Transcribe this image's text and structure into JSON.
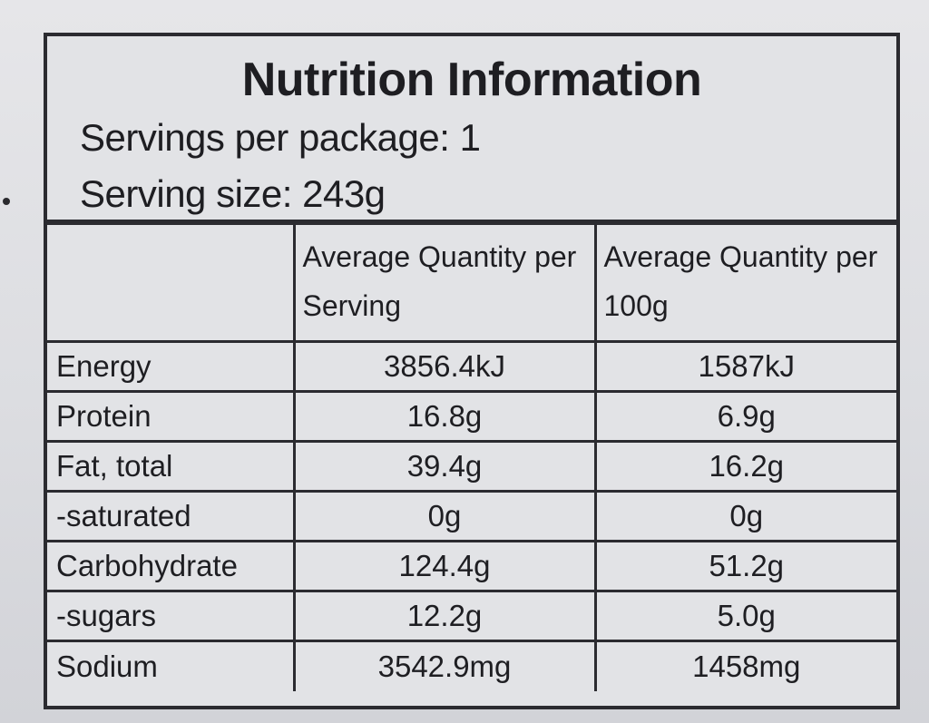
{
  "panel": {
    "title": "Nutrition Information",
    "servings_per_package": "Servings per package: 1",
    "serving_size": "Serving size: 243g"
  },
  "table": {
    "columns": [
      "",
      "Average Quantity per Serving",
      "Average Quantity per 100g"
    ],
    "rows": [
      {
        "nutrient": "Energy",
        "per_serving": "3856.4kJ",
        "per_100g": "1587kJ"
      },
      {
        "nutrient": "Protein",
        "per_serving": "16.8g",
        "per_100g": "6.9g"
      },
      {
        "nutrient": "Fat, total",
        "per_serving": "39.4g",
        "per_100g": "16.2g"
      },
      {
        "nutrient": "-saturated",
        "per_serving": "0g",
        "per_100g": "0g"
      },
      {
        "nutrient": "Carbohydrate",
        "per_serving": "124.4g",
        "per_100g": "51.2g"
      },
      {
        "nutrient": "-sugars",
        "per_serving": "12.2g",
        "per_100g": "5.0g"
      },
      {
        "nutrient": "Sodium",
        "per_serving": "3542.9mg",
        "per_100g": "1458mg"
      }
    ]
  }
}
